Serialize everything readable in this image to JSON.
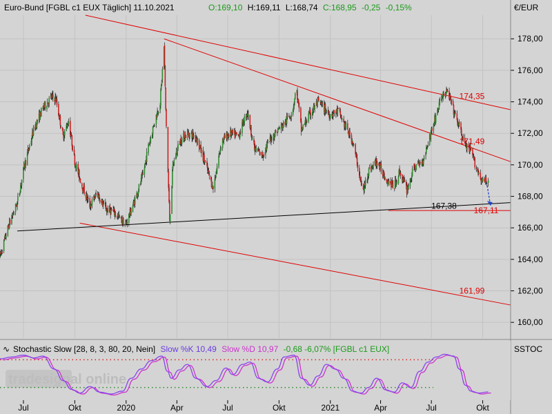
{
  "header": {
    "instrument": "Euro-Bund [FGBL c1 EUX  Täglich] 11.10.2021",
    "open": "O:169,10",
    "high": "H:169,11",
    "low": "L:168,74",
    "close": "C:168,95",
    "change": "-0,25",
    "change_pct": "-0,15%",
    "currency": "€/EUR"
  },
  "indicator": {
    "name": "Stochastic Slow [28, 8, 3, 80, 20, Nein]",
    "k": "Slow %K 10,49",
    "d": "Slow %D 10,97",
    "diff": "-0,68 -6,07% [FGBL c1 EUX]",
    "axis_label": "SSTOC",
    "upper_level": 80,
    "lower_level": 20
  },
  "watermark": "tradesignal online",
  "colors": {
    "up": "#2e8b2e",
    "down": "#cc2222",
    "trendline": "#e00000",
    "support": "#000000",
    "k_line": "#8844ee",
    "d_line": "#cc33cc",
    "level": "#dd2222"
  },
  "chart_data": {
    "type": "candlestick",
    "title": "Euro-Bund [FGBL c1 EUX  Täglich] 11.10.2021",
    "ylabel": "€/EUR",
    "ylim": [
      159,
      179.5
    ],
    "yticks": [
      {
        "value": 178,
        "label": "178,00"
      },
      {
        "value": 176,
        "label": "176,00"
      },
      {
        "value": 174,
        "label": "174,00"
      },
      {
        "value": 172,
        "label": "172,00"
      },
      {
        "value": 170,
        "label": "170,00"
      },
      {
        "value": 168,
        "label": "168,00"
      },
      {
        "value": 166,
        "label": "166,00"
      },
      {
        "value": 164,
        "label": "164,00"
      },
      {
        "value": 162,
        "label": "162,00"
      },
      {
        "value": 160,
        "label": "160,00"
      }
    ],
    "xlim": [
      "2019-05-20",
      "2021-11-20"
    ],
    "xticks": [
      {
        "date": "2019-07-01",
        "label": "Jul"
      },
      {
        "date": "2019-10-01",
        "label": "Okt"
      },
      {
        "date": "2020-01-01",
        "label": "2020"
      },
      {
        "date": "2020-04-01",
        "label": "Apr"
      },
      {
        "date": "2020-07-01",
        "label": "Jul"
      },
      {
        "date": "2020-10-01",
        "label": "Okt"
      },
      {
        "date": "2021-01-01",
        "label": "2021"
      },
      {
        "date": "2021-04-01",
        "label": "Apr"
      },
      {
        "date": "2021-07-01",
        "label": "Jul"
      },
      {
        "date": "2021-10-01",
        "label": "Okt"
      }
    ],
    "price_path": [
      [
        "2019-05-20",
        164.2
      ],
      [
        "2019-06-05",
        166.2
      ],
      [
        "2019-06-20",
        167.6
      ],
      [
        "2019-07-03",
        170.0
      ],
      [
        "2019-07-20",
        172.3
      ],
      [
        "2019-08-05",
        173.6
      ],
      [
        "2019-08-20",
        174.3
      ],
      [
        "2019-08-28",
        174.2
      ],
      [
        "2019-09-10",
        171.8
      ],
      [
        "2019-09-20",
        172.8
      ],
      [
        "2019-10-01",
        170.2
      ],
      [
        "2019-10-15",
        168.6
      ],
      [
        "2019-10-28",
        167.4
      ],
      [
        "2019-11-10",
        168.2
      ],
      [
        "2019-11-25",
        167.2
      ],
      [
        "2019-12-10",
        167.0
      ],
      [
        "2019-12-31",
        166.2
      ],
      [
        "2020-01-15",
        167.6
      ],
      [
        "2020-01-31",
        169.3
      ],
      [
        "2020-02-10",
        171.2
      ],
      [
        "2020-02-20",
        172.6
      ],
      [
        "2020-03-02",
        174.0
      ],
      [
        "2020-03-09",
        177.5
      ],
      [
        "2020-03-12",
        173.5
      ],
      [
        "2020-03-19",
        166.5
      ],
      [
        "2020-03-25",
        170.0
      ],
      [
        "2020-04-06",
        171.5
      ],
      [
        "2020-04-20",
        172.0
      ],
      [
        "2020-05-05",
        171.8
      ],
      [
        "2020-05-18",
        170.5
      ],
      [
        "2020-06-05",
        168.5
      ],
      [
        "2020-06-20",
        171.5
      ],
      [
        "2020-07-05",
        172.0
      ],
      [
        "2020-07-20",
        171.8
      ],
      [
        "2020-08-05",
        173.4
      ],
      [
        "2020-08-18",
        171.0
      ],
      [
        "2020-09-01",
        170.6
      ],
      [
        "2020-09-15",
        171.6
      ],
      [
        "2020-09-28",
        172.2
      ],
      [
        "2020-10-10",
        172.6
      ],
      [
        "2020-10-25",
        173.4
      ],
      [
        "2020-11-01",
        174.9
      ],
      [
        "2020-11-10",
        172.2
      ],
      [
        "2020-11-25",
        173.2
      ],
      [
        "2020-12-10",
        174.0
      ],
      [
        "2020-12-31",
        173.2
      ],
      [
        "2021-01-15",
        173.4
      ],
      [
        "2021-01-31",
        172.2
      ],
      [
        "2021-02-10",
        171.5
      ],
      [
        "2021-02-20",
        169.8
      ],
      [
        "2021-02-28",
        168.2
      ],
      [
        "2021-03-10",
        169.6
      ],
      [
        "2021-03-25",
        170.2
      ],
      [
        "2021-04-10",
        169.2
      ],
      [
        "2021-04-25",
        168.6
      ],
      [
        "2021-05-05",
        169.6
      ],
      [
        "2021-05-18",
        168.4
      ],
      [
        "2021-05-31",
        169.8
      ],
      [
        "2021-06-15",
        170.2
      ],
      [
        "2021-06-28",
        171.8
      ],
      [
        "2021-07-10",
        173.2
      ],
      [
        "2021-07-20",
        174.4
      ],
      [
        "2021-07-31",
        174.6
      ],
      [
        "2021-08-10",
        173.4
      ],
      [
        "2021-08-20",
        172.4
      ],
      [
        "2021-08-31",
        171.2
      ],
      [
        "2021-09-10",
        170.8
      ],
      [
        "2021-09-20",
        169.8
      ],
      [
        "2021-10-01",
        168.9
      ],
      [
        "2021-10-11",
        168.95
      ]
    ],
    "lines": [
      {
        "label": "174,35",
        "color": "#e00000",
        "from": [
          "2019-10-20",
          179.5
        ],
        "to": [
          "2021-11-20",
          173.5
        ],
        "label_at": [
          "2021-08-20",
          174.35
        ]
      },
      {
        "label": "171,49",
        "color": "#e00000",
        "from": [
          "2020-03-09",
          178.0
        ],
        "to": [
          "2021-11-20",
          170.2
        ],
        "label_at": [
          "2021-08-20",
          171.49
        ]
      },
      {
        "label": "161,99",
        "color": "#e00000",
        "from": [
          "2019-10-10",
          166.3
        ],
        "to": [
          "2021-11-20",
          161.1
        ],
        "label_at": [
          "2021-08-20",
          161.99
        ]
      },
      {
        "label": "167,38",
        "color": "#000000",
        "from": [
          "2019-06-20",
          165.8
        ],
        "to": [
          "2021-11-20",
          167.6
        ],
        "label_at": [
          "2021-07-01",
          167.38
        ]
      },
      {
        "label": "167,11",
        "color": "#e00000",
        "from": [
          "2021-04-15",
          167.1
        ],
        "to": [
          "2021-11-20",
          167.1
        ],
        "label_at": [
          "2021-09-15",
          167.11
        ]
      }
    ],
    "projection_arrow": {
      "from": [
        "2021-10-08",
        168.9
      ],
      "to": [
        "2021-10-15",
        167.4
      ],
      "color": "#2244cc"
    },
    "stochastic": {
      "ylim": [
        0,
        100
      ],
      "levels": [
        80,
        20
      ],
      "k_path": [
        [
          "2019-05-20",
          82
        ],
        [
          "2019-06-10",
          86
        ],
        [
          "2019-07-01",
          90
        ],
        [
          "2019-07-20",
          84
        ],
        [
          "2019-08-05",
          88
        ],
        [
          "2019-08-25",
          60
        ],
        [
          "2019-09-10",
          35
        ],
        [
          "2019-09-25",
          16
        ],
        [
          "2019-10-10",
          8
        ],
        [
          "2019-10-28",
          22
        ],
        [
          "2019-11-15",
          10
        ],
        [
          "2019-12-05",
          6
        ],
        [
          "2019-12-25",
          12
        ],
        [
          "2020-01-10",
          40
        ],
        [
          "2020-01-28",
          60
        ],
        [
          "2020-02-15",
          78
        ],
        [
          "2020-03-05",
          88
        ],
        [
          "2020-03-15",
          55
        ],
        [
          "2020-03-22",
          40
        ],
        [
          "2020-04-05",
          58
        ],
        [
          "2020-04-20",
          70
        ],
        [
          "2020-05-05",
          40
        ],
        [
          "2020-05-25",
          22
        ],
        [
          "2020-06-10",
          35
        ],
        [
          "2020-06-28",
          62
        ],
        [
          "2020-07-10",
          48
        ],
        [
          "2020-07-28",
          70
        ],
        [
          "2020-08-10",
          75
        ],
        [
          "2020-08-25",
          40
        ],
        [
          "2020-09-10",
          32
        ],
        [
          "2020-09-28",
          60
        ],
        [
          "2020-10-10",
          86
        ],
        [
          "2020-10-28",
          90
        ],
        [
          "2020-11-10",
          40
        ],
        [
          "2020-11-25",
          25
        ],
        [
          "2020-12-10",
          45
        ],
        [
          "2020-12-25",
          70
        ],
        [
          "2021-01-10",
          60
        ],
        [
          "2021-01-25",
          40
        ],
        [
          "2021-02-10",
          12
        ],
        [
          "2021-02-25",
          8
        ],
        [
          "2021-03-10",
          20
        ],
        [
          "2021-03-25",
          40
        ],
        [
          "2021-04-10",
          15
        ],
        [
          "2021-04-25",
          10
        ],
        [
          "2021-05-10",
          30
        ],
        [
          "2021-05-25",
          20
        ],
        [
          "2021-06-10",
          55
        ],
        [
          "2021-06-25",
          75
        ],
        [
          "2021-07-10",
          86
        ],
        [
          "2021-07-25",
          92
        ],
        [
          "2021-08-10",
          88
        ],
        [
          "2021-08-20",
          60
        ],
        [
          "2021-08-31",
          25
        ],
        [
          "2021-09-10",
          12
        ],
        [
          "2021-09-25",
          8
        ],
        [
          "2021-10-11",
          10.49
        ]
      ]
    }
  }
}
